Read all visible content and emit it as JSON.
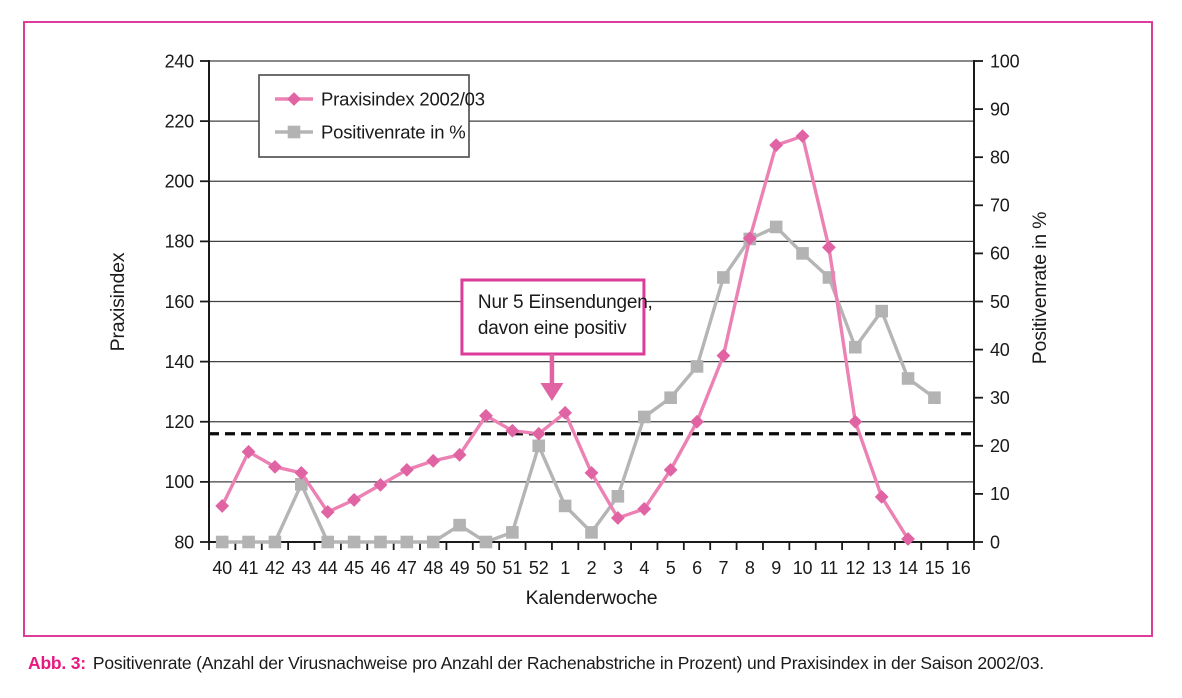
{
  "chart_data": {
    "type": "line",
    "x_label": "Kalenderwoche",
    "categories": [
      "40",
      "41",
      "42",
      "43",
      "44",
      "45",
      "46",
      "47",
      "48",
      "49",
      "50",
      "51",
      "52",
      "1",
      "2",
      "3",
      "4",
      "5",
      "6",
      "7",
      "8",
      "9",
      "10",
      "11",
      "12",
      "13",
      "14",
      "15",
      "16"
    ],
    "left_axis": {
      "label": "Praxisindex",
      "min": 80,
      "max": 240,
      "step": 20
    },
    "right_axis": {
      "label": "Positivenrate in %",
      "min": 0,
      "max": 100,
      "step": 10
    },
    "grid": true,
    "legend_position": "top-left",
    "series": [
      {
        "name": "Positivenrate in %",
        "key": "positivenrate",
        "axis": "right",
        "marker": "square",
        "color": "#b5b5b5",
        "marker_color": "#b3b3b3",
        "values": [
          0,
          0,
          0,
          12,
          0,
          0,
          0,
          0,
          0,
          3.5,
          0,
          2,
          20,
          7.5,
          2,
          9.5,
          26,
          30,
          36.5,
          55,
          63,
          65.5,
          60,
          55,
          40.5,
          48,
          34,
          30,
          null
        ]
      },
      {
        "name": "Praxisindex 2002/03",
        "key": "praxisindex",
        "axis": "left",
        "marker": "diamond",
        "color": "#ec82b4",
        "marker_color": "#e063a4",
        "values": [
          92,
          110,
          105,
          103,
          90,
          94,
          99,
          104,
          107,
          109,
          122,
          117,
          116,
          123,
          103,
          88,
          91,
          104,
          120,
          142,
          181,
          212,
          215,
          178,
          120,
          95,
          81,
          null,
          null
        ]
      }
    ],
    "legend_order": [
      "praxisindex",
      "positivenrate"
    ],
    "threshold": {
      "axis": "left",
      "value": 116,
      "style": "dashed",
      "color": "#0d0d0d"
    },
    "annotation": {
      "lines": [
        "Nur 5 Einsendungen,",
        "davon eine positiv"
      ],
      "points_between": [
        "52",
        "1"
      ],
      "border_color": "#dd3d9a",
      "arrow_color": "#e063a4"
    },
    "frame_color": "#dd3d9a",
    "grid_color": "#404040",
    "axis_color": "#1a1a1a"
  },
  "caption": {
    "label": "Abb. 3:",
    "text": "Positivenrate (Anzahl der Virusnachweise pro Anzahl der Rachenabstriche in Prozent) und Praxisindex in der Saison 2002/03."
  }
}
